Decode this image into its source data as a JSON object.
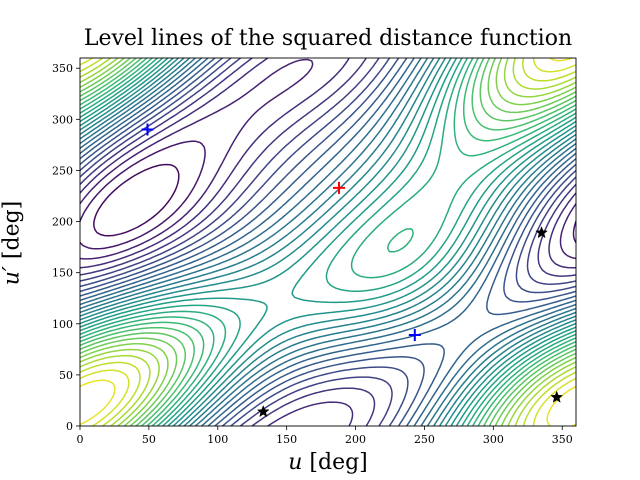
{
  "chart_data": {
    "type": "contour",
    "title": "Level lines of the squared distance function",
    "xlabel_var": "u",
    "xlabel_unit": "[deg]",
    "ylabel_var": "u′",
    "ylabel_unit": "[deg]",
    "xlim": [
      0,
      360
    ],
    "ylim": [
      0,
      360
    ],
    "xticks": [
      0,
      50,
      100,
      150,
      200,
      250,
      300,
      350
    ],
    "yticks": [
      0,
      50,
      100,
      150,
      200,
      250,
      300,
      350
    ],
    "colormap": "viridis",
    "markers": [
      {
        "kind": "maximum",
        "symbol": "+",
        "color": "#ff0000",
        "x": 188,
        "y": 233
      },
      {
        "kind": "minimum",
        "symbol": "+",
        "color": "#0000ff",
        "x": 49,
        "y": 290
      },
      {
        "kind": "minimum",
        "symbol": "+",
        "color": "#0000ff",
        "x": 243,
        "y": 89
      },
      {
        "kind": "saddle",
        "symbol": "star",
        "color": "#000000",
        "x": 133,
        "y": 14
      },
      {
        "kind": "saddle",
        "symbol": "star",
        "color": "#000000",
        "x": 335,
        "y": 189
      },
      {
        "kind": "saddle",
        "symbol": "star",
        "color": "#000000",
        "x": 346,
        "y": 28
      }
    ]
  }
}
